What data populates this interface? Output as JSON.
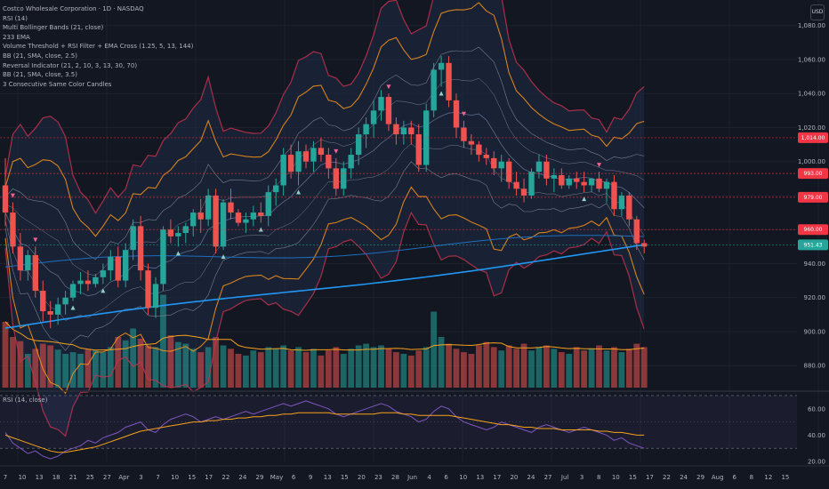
{
  "legend": {
    "lines": [
      "Costco Wholesale Corporation · 1D · NASDAQ",
      "RSI (14)",
      "Multi Bollinger Bands (21, close)",
      "233 EMA",
      "Volume Threshold + RSI Filter + EMA Cross (1.25, 5, 13, 144)",
      "BB (21, SMA, close, 2.5)",
      "Reversal Indicator (21, 2, 10, 3, 13, 30, 70)",
      "BB (21, SMA, close, 3.5)",
      "3 Consecutive Same Color Candles"
    ],
    "currency": "USD"
  },
  "rsi_panel": {
    "label": "RSI (14, close)"
  },
  "colors": {
    "background": "#131722",
    "up": "#26a69a",
    "down": "#ef5350",
    "ema": "#2196f3",
    "bb_orange": "#f7931a",
    "bb_red": "#c2334d",
    "bb_grey": "#8a8fa0",
    "rsi_line": "#7e57c2",
    "rsi_ma": "#f7a21b"
  },
  "chart_data": [
    {
      "type": "candlestick",
      "title": "Costco Wholesale Corporation · 1D · NASDAQ",
      "y_ticks": [
        880,
        900,
        920,
        940,
        960,
        980,
        1000,
        1020,
        1040,
        1060,
        1080
      ],
      "y_tick_labels": [
        "880.00",
        "900.00",
        "920.00",
        "940.00",
        "960.00",
        "980.00",
        "1,000.00",
        "1,020.00",
        "1,040.00",
        "1,060.00",
        "1,080.00"
      ],
      "ylim": [
        866,
        1095
      ],
      "x_tick_labels": [
        "7",
        "10",
        "13",
        "18",
        "21",
        "25",
        "27",
        "Apr",
        "3",
        "7",
        "10",
        "15",
        "17",
        "22",
        "24",
        "29",
        "May",
        "6",
        "9",
        "13",
        "15",
        "20",
        "23",
        "28",
        "Jun",
        "4",
        "6",
        "10",
        "13",
        "17",
        "20",
        "24",
        "27",
        "Jul",
        "3",
        "8",
        "10",
        "15",
        "17",
        "22",
        "24",
        "29",
        "Aug",
        "6",
        "8",
        "12",
        "15"
      ],
      "candles": [
        [
          986,
          1002,
          962,
          970
        ],
        [
          970,
          976,
          946,
          950
        ],
        [
          950,
          958,
          930,
          936
        ],
        [
          936,
          948,
          930,
          945
        ],
        [
          945,
          950,
          920,
          924
        ],
        [
          924,
          930,
          906,
          912
        ],
        [
          912,
          918,
          902,
          910
        ],
        [
          910,
          920,
          904,
          916
        ],
        [
          916,
          924,
          910,
          920
        ],
        [
          920,
          930,
          918,
          928
        ],
        [
          928,
          935,
          922,
          930
        ],
        [
          930,
          936,
          924,
          928
        ],
        [
          928,
          934,
          926,
          932
        ],
        [
          932,
          940,
          928,
          936
        ],
        [
          936,
          948,
          930,
          944
        ],
        [
          944,
          950,
          926,
          930
        ],
        [
          930,
          952,
          926,
          948
        ],
        [
          948,
          966,
          942,
          962
        ],
        [
          962,
          968,
          930,
          936
        ],
        [
          936,
          940,
          910,
          914
        ],
        [
          914,
          932,
          908,
          928
        ],
        [
          928,
          962,
          924,
          960
        ],
        [
          960,
          966,
          952,
          956
        ],
        [
          956,
          962,
          950,
          958
        ],
        [
          958,
          964,
          952,
          962
        ],
        [
          962,
          972,
          956,
          970
        ],
        [
          970,
          978,
          958,
          966
        ],
        [
          966,
          984,
          962,
          980
        ],
        [
          980,
          984,
          946,
          950
        ],
        [
          950,
          978,
          948,
          976
        ],
        [
          976,
          984,
          966,
          970
        ],
        [
          970,
          972,
          962,
          964
        ],
        [
          964,
          970,
          958,
          966
        ],
        [
          966,
          974,
          962,
          970
        ],
        [
          970,
          976,
          964,
          968
        ],
        [
          968,
          986,
          962,
          982
        ],
        [
          982,
          990,
          974,
          986
        ],
        [
          986,
          1008,
          980,
          1004
        ],
        [
          1004,
          1010,
          990,
          994
        ],
        [
          994,
          1012,
          986,
          1006
        ],
        [
          1006,
          1010,
          996,
          1000
        ],
        [
          1000,
          1012,
          994,
          1008
        ],
        [
          1008,
          1014,
          1000,
          1004
        ],
        [
          1004,
          1008,
          990,
          996
        ],
        [
          996,
          1002,
          980,
          984
        ],
        [
          984,
          1000,
          980,
          996
        ],
        [
          996,
          1008,
          990,
          1004
        ],
        [
          1004,
          1020,
          998,
          1016
        ],
        [
          1016,
          1026,
          1008,
          1022
        ],
        [
          1022,
          1036,
          1014,
          1030
        ],
        [
          1030,
          1042,
          1024,
          1038
        ],
        [
          1038,
          1040,
          1018,
          1022
        ],
        [
          1022,
          1026,
          1010,
          1016
        ],
        [
          1016,
          1024,
          1010,
          1020
        ],
        [
          1020,
          1024,
          1010,
          1016
        ],
        [
          1016,
          1022,
          994,
          998
        ],
        [
          998,
          1034,
          994,
          1030
        ],
        [
          1030,
          1058,
          1026,
          1054
        ],
        [
          1054,
          1062,
          1044,
          1058
        ],
        [
          1058,
          1062,
          1032,
          1036
        ],
        [
          1036,
          1040,
          1014,
          1020
        ],
        [
          1020,
          1024,
          1008,
          1012
        ],
        [
          1012,
          1016,
          1004,
          1010
        ],
        [
          1010,
          1012,
          1000,
          1004
        ],
        [
          1004,
          1008,
          998,
          1002
        ],
        [
          1002,
          1006,
          992,
          996
        ],
        [
          996,
          1004,
          988,
          1000
        ],
        [
          1000,
          1002,
          984,
          988
        ],
        [
          988,
          994,
          980,
          984
        ],
        [
          984,
          990,
          976,
          980
        ],
        [
          980,
          996,
          978,
          994
        ],
        [
          994,
          1004,
          990,
          1000
        ],
        [
          1000,
          1004,
          986,
          990
        ],
        [
          990,
          996,
          982,
          992
        ],
        [
          992,
          996,
          984,
          986
        ],
        [
          986,
          992,
          984,
          990
        ],
        [
          990,
          994,
          984,
          988
        ],
        [
          988,
          994,
          982,
          986
        ],
        [
          986,
          990,
          982,
          990
        ],
        [
          990,
          994,
          982,
          984
        ],
        [
          984,
          990,
          976,
          988
        ],
        [
          988,
          992,
          968,
          972
        ],
        [
          972,
          982,
          968,
          980
        ],
        [
          980,
          982,
          962,
          966
        ],
        [
          966,
          968,
          948,
          952
        ],
        [
          952,
          954,
          946,
          950
        ]
      ],
      "overlays": {
        "ema_233": "rising from ~902 to ~950",
        "bb_21_2.5": "orange bands",
        "bb_21_3.5": "red bands"
      },
      "price_tags": [
        {
          "value": 1014,
          "label": "1,014.00",
          "color": "#f23645"
        },
        {
          "value": 993,
          "label": "993.00",
          "color": "#f23645"
        },
        {
          "value": 979,
          "label": "979.00",
          "color": "#f23645"
        },
        {
          "value": 960,
          "label": "960.00",
          "color": "#f23645"
        },
        {
          "value": 951,
          "label": "951.43",
          "color": "#26a69a"
        }
      ],
      "volume": [
        78,
        60,
        55,
        40,
        46,
        52,
        50,
        45,
        40,
        42,
        40,
        45,
        44,
        42,
        48,
        60,
        56,
        70,
        58,
        50,
        48,
        110,
        62,
        54,
        52,
        46,
        42,
        48,
        60,
        50,
        46,
        40,
        38,
        44,
        42,
        48,
        46,
        50,
        44,
        48,
        42,
        46,
        38,
        44,
        48,
        40,
        46,
        50,
        52,
        48,
        50,
        46,
        42,
        40,
        38,
        44,
        48,
        90,
        60,
        52,
        46,
        42,
        40,
        50,
        54,
        48,
        44,
        50,
        46,
        52,
        44,
        48,
        50,
        46,
        42,
        40,
        48,
        44,
        46,
        50,
        44,
        48,
        42,
        46,
        52,
        48
      ]
    },
    {
      "type": "line",
      "title": "RSI (14, close)",
      "y_ticks": [
        20,
        40,
        60
      ],
      "y_tick_labels": [
        "20.00",
        "40.00",
        "60.00"
      ],
      "ylim": [
        18,
        72
      ],
      "bands": [
        30,
        70
      ],
      "series": [
        {
          "values": [
            42,
            34,
            30,
            26,
            28,
            24,
            22,
            24,
            28,
            30,
            32,
            36,
            34,
            38,
            40,
            42,
            46,
            48,
            50,
            44,
            42,
            48,
            52,
            54,
            56,
            54,
            50,
            52,
            54,
            52,
            54,
            56,
            58,
            56,
            58,
            60,
            62,
            64,
            62,
            64,
            66,
            64,
            62,
            60,
            56,
            54,
            56,
            58,
            60,
            62,
            64,
            62,
            58,
            56,
            54,
            50,
            52,
            58,
            62,
            60,
            54,
            50,
            48,
            46,
            44,
            46,
            50,
            48,
            46,
            44,
            42,
            46,
            48,
            46,
            44,
            42,
            44,
            46,
            44,
            42,
            40,
            36,
            38,
            34,
            32,
            30
          ]
        },
        {
          "values": [
            40,
            38,
            36,
            34,
            32,
            30,
            28,
            27,
            27,
            28,
            29,
            30,
            31,
            33,
            35,
            37,
            39,
            41,
            43,
            44,
            45,
            46,
            47,
            48,
            49,
            50,
            50,
            51,
            51,
            52,
            52,
            53,
            53,
            54,
            54,
            55,
            55,
            56,
            56,
            57,
            57,
            57,
            57,
            57,
            56,
            56,
            56,
            56,
            56,
            56,
            57,
            57,
            57,
            56,
            56,
            55,
            55,
            55,
            55,
            55,
            54,
            53,
            52,
            51,
            50,
            49,
            48,
            48,
            47,
            46,
            46,
            45,
            45,
            45,
            44,
            44,
            44,
            44,
            44,
            43,
            43,
            42,
            42,
            41,
            40,
            40
          ]
        }
      ]
    }
  ]
}
